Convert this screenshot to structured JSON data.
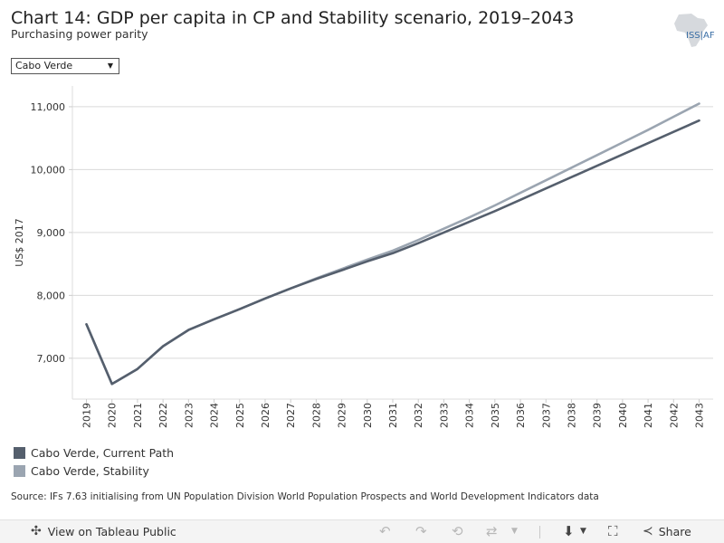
{
  "header": {
    "title": "Chart 14: GDP per capita in CP and Stability scenario, 2019–2043",
    "subtitle": "Purchasing power parity",
    "logo_text": "ISS|AF"
  },
  "filter": {
    "selected": "Cabo Verde",
    "arrow_icon": "triangle-down-icon"
  },
  "chart_data": {
    "type": "line",
    "title": "Chart 14: GDP per capita in CP and Stability scenario, 2019–2043",
    "subtitle": "Purchasing power parity",
    "xlabel": "",
    "ylabel": "US$ 2017",
    "x": [
      2019,
      2020,
      2021,
      2022,
      2023,
      2024,
      2025,
      2026,
      2027,
      2028,
      2029,
      2030,
      2031,
      2032,
      2033,
      2034,
      2035,
      2036,
      2037,
      2038,
      2039,
      2040,
      2041,
      2042,
      2043
    ],
    "series": [
      {
        "name": "Cabo Verde, Current Path",
        "color": "#555f6d",
        "values": [
          7540,
          6590,
          6830,
          7190,
          7450,
          7620,
          7780,
          7950,
          8110,
          8260,
          8400,
          8540,
          8670,
          8830,
          9000,
          9170,
          9340,
          9520,
          9700,
          9880,
          10060,
          10240,
          10420,
          10600,
          10780
        ]
      },
      {
        "name": "Cabo Verde, Stability",
        "color": "#9ba5b1",
        "values": [
          7540,
          6590,
          6830,
          7190,
          7450,
          7620,
          7780,
          7950,
          8110,
          8270,
          8420,
          8570,
          8710,
          8880,
          9060,
          9240,
          9430,
          9630,
          9830,
          10030,
          10230,
          10430,
          10630,
          10840,
          11050
        ]
      }
    ],
    "yticks": [
      7000,
      8000,
      9000,
      10000,
      11000
    ],
    "ytick_labels": [
      "7,000",
      "8,000",
      "9,000",
      "10,000",
      "11,000"
    ],
    "ylim": [
      6350,
      11330
    ],
    "grid": true,
    "legend": "bottom-left"
  },
  "source": "Source: IFs 7.63 initialising from UN Population Division World Population Prospects and World Development Indicators data",
  "footer": {
    "view_label": "View on Tableau Public",
    "view_icon": "tableau-icon",
    "share_label": "Share",
    "share_icon": "share-icon"
  }
}
